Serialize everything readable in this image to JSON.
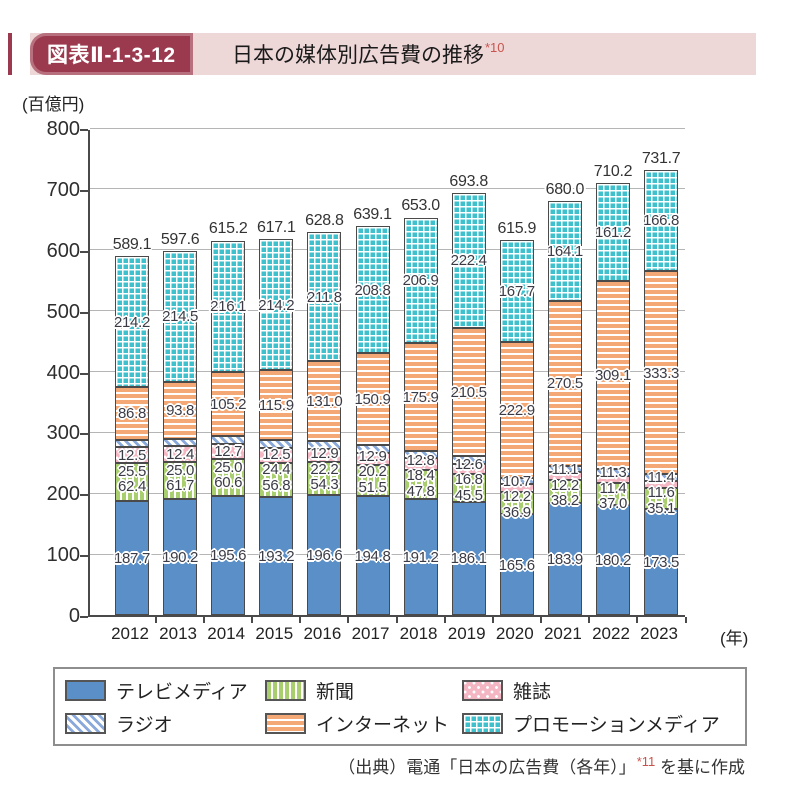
{
  "header": {
    "badge_label": "図表Ⅱ-1-3-12",
    "title": "日本の媒体別広告費の推移",
    "title_note": "*10"
  },
  "y_axis": {
    "unit_label": "(百億円)",
    "ticks": [
      "0",
      "100",
      "200",
      "300",
      "400",
      "500",
      "600",
      "700",
      "800"
    ]
  },
  "x_axis": {
    "unit_label": "(年)"
  },
  "legend": {
    "items": [
      {
        "label": "テレビメディア",
        "pattern": "tv"
      },
      {
        "label": "新聞",
        "pattern": "newspaper"
      },
      {
        "label": "雑誌",
        "pattern": "magazine"
      },
      {
        "label": "ラジオ",
        "pattern": "radio"
      },
      {
        "label": "インターネット",
        "pattern": "internet"
      },
      {
        "label": "プロモーションメディア",
        "pattern": "promotion"
      }
    ]
  },
  "source": {
    "text": "（出典）電通「日本の広告費（各年）」",
    "note": "*11",
    "suffix": " を基に作成"
  },
  "colors": {
    "badge_bg": "#9b3a4f",
    "strip_bg": "#eed7d7",
    "note_red": "#c9544d",
    "tv": "#5a8fc8",
    "radio_stripe": "#88a9da",
    "newspaper": "#a9ce6e",
    "internet": "#f3a876",
    "magazine": "#f4b6c2",
    "promotion": "#3ec1cc",
    "bar_border": "#4a4a4a",
    "grid": "#b5b5b5",
    "label_text": "#3b3b46"
  },
  "chart_data": {
    "type": "bar",
    "stacked": true,
    "title": "日本の媒体別広告費の推移",
    "ylabel": "百億円",
    "xlabel": "年",
    "ylim": [
      0,
      800
    ],
    "ytick_step": 100,
    "grid": true,
    "legend_position": "bottom",
    "categories": [
      "2012",
      "2013",
      "2014",
      "2015",
      "2016",
      "2017",
      "2018",
      "2019",
      "2020",
      "2021",
      "2022",
      "2023"
    ],
    "series": [
      {
        "name": "テレビメディア",
        "pattern": "tv",
        "values": [
          187.7,
          190.2,
          195.6,
          193.2,
          196.6,
          194.8,
          191.2,
          186.1,
          165.6,
          183.9,
          180.2,
          173.5
        ]
      },
      {
        "name": "新聞",
        "pattern": "newspaper",
        "values": [
          62.4,
          61.7,
          60.6,
          56.8,
          54.3,
          51.5,
          47.8,
          45.5,
          36.9,
          38.2,
          37.0,
          35.1
        ]
      },
      {
        "name": "雑誌",
        "pattern": "magazine",
        "values": [
          25.5,
          25.0,
          25.0,
          24.4,
          22.2,
          20.2,
          18.4,
          16.8,
          12.2,
          12.2,
          11.4,
          11.6
        ]
      },
      {
        "name": "ラジオ",
        "pattern": "radio",
        "values": [
          12.5,
          12.4,
          12.7,
          12.5,
          12.9,
          12.9,
          12.8,
          12.6,
          10.7,
          11.1,
          11.3,
          11.4
        ]
      },
      {
        "name": "インターネット",
        "pattern": "internet",
        "values": [
          86.8,
          93.8,
          105.2,
          115.9,
          131.0,
          150.9,
          175.9,
          210.5,
          222.9,
          270.5,
          309.1,
          333.3
        ]
      },
      {
        "name": "プロモーションメディア",
        "pattern": "promotion",
        "values": [
          214.2,
          214.5,
          216.1,
          214.2,
          211.8,
          208.8,
          206.9,
          222.4,
          167.7,
          164.1,
          161.2,
          166.8
        ]
      }
    ],
    "totals": [
      589.1,
      597.6,
      615.2,
      617.1,
      628.8,
      639.1,
      653.0,
      693.8,
      615.9,
      680.0,
      710.2,
      731.7
    ]
  }
}
